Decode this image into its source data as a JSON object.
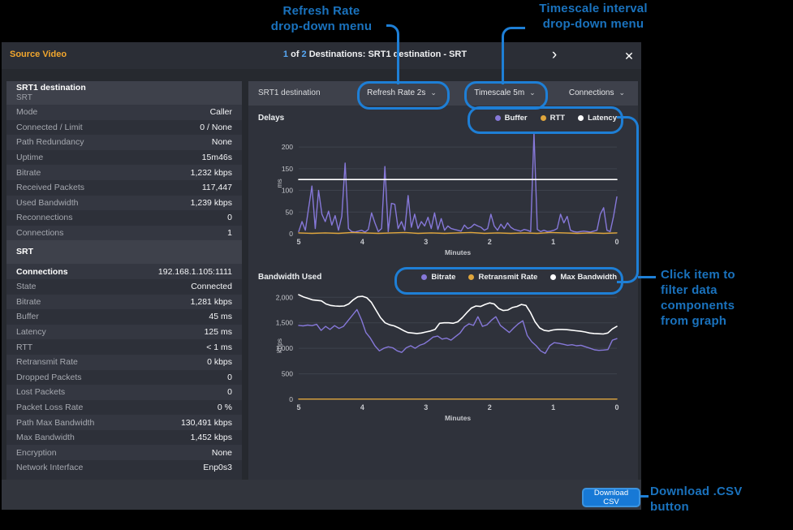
{
  "header": {
    "app_title": "Source Video",
    "page_current": "1",
    "page_sep": "of",
    "page_total": "2",
    "title": "Destinations: SRT1 destination - SRT",
    "next_icon": "›",
    "close_icon": "✕"
  },
  "sidebar": {
    "rows": [
      {
        "kind": "header",
        "title": "SRT1 destination",
        "subtitle": "SRT"
      },
      {
        "kind": "row",
        "label": "Mode",
        "value": "Caller"
      },
      {
        "kind": "row",
        "label": "Connected / Limit",
        "value": "0 / None"
      },
      {
        "kind": "row",
        "label": "Path Redundancy",
        "value": "None"
      },
      {
        "kind": "row",
        "label": "Uptime",
        "value": "15m46s"
      },
      {
        "kind": "row",
        "label": "Bitrate",
        "value": "1,232 kbps"
      },
      {
        "kind": "row",
        "label": "Received Packets",
        "value": "117,447"
      },
      {
        "kind": "row",
        "label": "Used Bandwidth",
        "value": "1,239 kbps"
      },
      {
        "kind": "row",
        "label": "Reconnections",
        "value": "0"
      },
      {
        "kind": "row",
        "label": "Connections",
        "value": "1"
      },
      {
        "kind": "header",
        "title": "SRT",
        "subtitle": ""
      },
      {
        "kind": "strong",
        "label": "Connections",
        "value": "192.168.1.105:1111"
      },
      {
        "kind": "row",
        "label": "State",
        "value": "Connected"
      },
      {
        "kind": "row",
        "label": "Bitrate",
        "value": "1,281 kbps"
      },
      {
        "kind": "row",
        "label": "Buffer",
        "value": "45 ms"
      },
      {
        "kind": "row",
        "label": "Latency",
        "value": "125 ms"
      },
      {
        "kind": "row",
        "label": "RTT",
        "value": "< 1 ms"
      },
      {
        "kind": "row",
        "label": "Retransmit Rate",
        "value": "0 kbps"
      },
      {
        "kind": "row",
        "label": "Dropped Packets",
        "value": "0"
      },
      {
        "kind": "row",
        "label": "Lost Packets",
        "value": "0"
      },
      {
        "kind": "row",
        "label": "Packet Loss Rate",
        "value": "0 %"
      },
      {
        "kind": "row",
        "label": "Path Max Bandwidth",
        "value": "130,491 kbps"
      },
      {
        "kind": "row",
        "label": "Max Bandwidth",
        "value": "1,452 kbps"
      },
      {
        "kind": "row",
        "label": "Encryption",
        "value": "None"
      },
      {
        "kind": "row",
        "label": "Network Interface",
        "value": "Enp0s3"
      }
    ]
  },
  "toolbar": {
    "panel_title": "SRT1 destination",
    "refresh": "Refresh Rate 2s",
    "timescale": "Timescale 5m",
    "connections": "Connections",
    "chevron": "⌄"
  },
  "footer": {
    "download_csv": "Download CSV"
  },
  "annotations": {
    "refresh": "Refresh Rate\ndrop-down menu",
    "timescale": "Timescale interval\ndrop-down menu",
    "filter": "Click item to\nfilter data\ncomponents\nfrom graph",
    "download": "Download .CSV\nbutton"
  },
  "colors": {
    "annotation_blue": "#1e7fd6",
    "annotation_text": "#1a72bd",
    "accent_orange": "#f2a72e",
    "pagination_blue": "#57a8f5",
    "button_blue": "#1779d6",
    "buffer_purple": "#8678d9",
    "rtt_yellow": "#e0a63c",
    "latency_white": "#ffffff"
  },
  "chart_data": [
    {
      "type": "line",
      "title": "Delays",
      "xlabel": "Minutes",
      "ylabel": "ms",
      "x_range": [
        5,
        0
      ],
      "ylim": [
        0,
        232
      ],
      "grid": true,
      "legend_position": "top-right",
      "yticks": [
        {
          "v": 0,
          "label": "0"
        },
        {
          "v": 50,
          "label": "50"
        },
        {
          "v": 100,
          "label": "100"
        },
        {
          "v": 150,
          "label": "150"
        },
        {
          "v": 200,
          "label": "200"
        }
      ],
      "xticks": [
        {
          "v": 5,
          "label": "5"
        },
        {
          "v": 4,
          "label": "4"
        },
        {
          "v": 3,
          "label": "3"
        },
        {
          "v": 2,
          "label": "2"
        },
        {
          "v": 1,
          "label": "1"
        },
        {
          "v": 0,
          "label": "0"
        }
      ],
      "series": [
        {
          "name": "Buffer",
          "color": "#8678d9",
          "width": 1.4,
          "values": [
            5,
            28,
            8,
            60,
            110,
            12,
            100,
            45,
            28,
            52,
            20,
            42,
            8,
            40,
            163,
            12,
            5,
            4,
            6,
            8,
            4,
            10,
            48,
            25,
            5,
            12,
            155,
            5,
            70,
            68,
            12,
            28,
            8,
            88,
            15,
            45,
            12,
            28,
            18,
            38,
            12,
            48,
            10,
            35,
            8,
            18,
            12,
            10,
            8,
            6,
            20,
            12,
            15,
            22,
            18,
            15,
            8,
            12,
            45,
            18,
            8,
            22,
            12,
            25,
            15,
            10,
            8,
            6,
            10,
            8,
            5,
            232,
            10,
            5,
            8,
            5,
            6,
            8,
            12,
            45,
            25,
            40,
            8,
            5,
            4,
            5,
            6,
            5,
            4,
            6,
            8,
            45,
            60,
            8,
            5,
            40,
            85
          ]
        },
        {
          "name": "RTT",
          "color": "#e0a63c",
          "width": 1.4,
          "values": [
            2,
            1,
            2,
            1,
            3,
            2,
            1,
            2,
            3,
            1,
            2,
            1,
            2,
            3,
            1,
            2,
            1,
            2,
            1,
            3,
            2,
            1,
            2,
            1,
            2
          ]
        },
        {
          "name": "Latency",
          "color": "#ffffff",
          "width": 1.6,
          "values": [
            125,
            125
          ]
        }
      ]
    },
    {
      "type": "line",
      "title": "Bandwidth Used",
      "xlabel": "Minutes",
      "ylabel": "kbps",
      "x_range": [
        5,
        0
      ],
      "ylim": [
        0,
        2100
      ],
      "grid": true,
      "legend_position": "top-right",
      "yticks": [
        {
          "v": 0,
          "label": "0"
        },
        {
          "v": 500,
          "label": "500"
        },
        {
          "v": 1000,
          "label": "1,000"
        },
        {
          "v": 1500,
          "label": "1,500"
        },
        {
          "v": 2000,
          "label": "2,000"
        }
      ],
      "xticks": [
        {
          "v": 5,
          "label": "5"
        },
        {
          "v": 4,
          "label": "4"
        },
        {
          "v": 3,
          "label": "3"
        },
        {
          "v": 2,
          "label": "2"
        },
        {
          "v": 1,
          "label": "1"
        },
        {
          "v": 0,
          "label": "0"
        }
      ],
      "series": [
        {
          "name": "Bitrate",
          "color": "#8678d9",
          "width": 1.4,
          "values": [
            1450,
            1440,
            1455,
            1445,
            1470,
            1350,
            1430,
            1370,
            1445,
            1390,
            1430,
            1540,
            1650,
            1760,
            1560,
            1310,
            1200,
            1050,
            950,
            1000,
            1030,
            1010,
            950,
            920,
            1010,
            1050,
            1000,
            1060,
            1090,
            1150,
            1220,
            1240,
            1180,
            1200,
            1160,
            1230,
            1300,
            1420,
            1480,
            1450,
            1620,
            1430,
            1460,
            1550,
            1620,
            1450,
            1380,
            1310,
            1400,
            1480,
            1540,
            1250,
            1130,
            1050,
            950,
            900,
            1050,
            1110,
            1100,
            1080,
            1060,
            1070,
            1050,
            1060,
            1030,
            1000,
            970,
            960,
            965,
            975,
            1160,
            1190
          ]
        },
        {
          "name": "Retransmit Rate",
          "color": "#e0a63c",
          "width": 1.4,
          "values": [
            5,
            5
          ]
        },
        {
          "name": "Max Bandwidth",
          "color": "#ffffff",
          "width": 1.6,
          "values": [
            2050,
            2010,
            1980,
            1950,
            1940,
            1930,
            1870,
            1840,
            1830,
            1825,
            1830,
            1870,
            1950,
            2010,
            2020,
            1990,
            1900,
            1750,
            1600,
            1500,
            1460,
            1440,
            1400,
            1350,
            1310,
            1300,
            1290,
            1300,
            1320,
            1340,
            1370,
            1490,
            1500,
            1500,
            1490,
            1520,
            1600,
            1700,
            1790,
            1830,
            1820,
            1860,
            1890,
            1870,
            1780,
            1740,
            1750,
            1800,
            1820,
            1860,
            1840,
            1700,
            1520,
            1400,
            1350,
            1340,
            1360,
            1370,
            1370,
            1365,
            1355,
            1345,
            1335,
            1320,
            1300,
            1290,
            1285,
            1280,
            1300,
            1380,
            1430
          ]
        }
      ]
    }
  ]
}
